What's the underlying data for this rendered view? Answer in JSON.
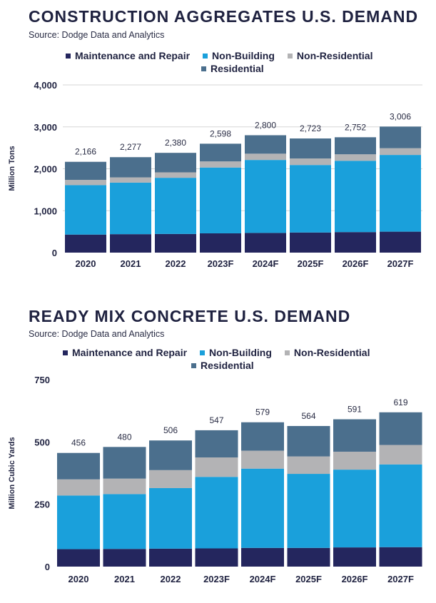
{
  "colors": {
    "maintenance": "#24265e",
    "nonbuilding": "#1aa0db",
    "nonresidential": "#b3b3b5",
    "residential": "#4b6f8d"
  },
  "chart_data": [
    {
      "type": "bar",
      "stacked": true,
      "title": "CONSTRUCTION AGGREGATES U.S. DEMAND",
      "source": "Source: Dodge Data and Analytics",
      "ylabel": "Million Tons",
      "xlabel": "",
      "ylim": [
        0,
        4000
      ],
      "yticks": [
        "0",
        "1,000",
        "2,000",
        "3,000",
        "4,000"
      ],
      "ytick_values": [
        0,
        1000,
        2000,
        3000,
        4000
      ],
      "grid": true,
      "legend_position": "top",
      "categories": [
        "2020",
        "2021",
        "2022",
        "2023F",
        "2024F",
        "2025F",
        "2026F",
        "2027F"
      ],
      "series": [
        {
          "name": "Maintenance and Repair",
          "color_key": "maintenance",
          "values": [
            430,
            440,
            445,
            460,
            470,
            480,
            490,
            500
          ]
        },
        {
          "name": "Non-Building",
          "color_key": "nonbuilding",
          "values": [
            1180,
            1230,
            1340,
            1570,
            1740,
            1610,
            1700,
            1830
          ]
        },
        {
          "name": "Non-Residential",
          "color_key": "nonresidential",
          "values": [
            125,
            125,
            130,
            145,
            150,
            155,
            155,
            160
          ]
        },
        {
          "name": "Residential",
          "color_key": "residential",
          "values": [
            431,
            482,
            465,
            423,
            440,
            478,
            407,
            516
          ]
        }
      ],
      "totals": [
        "2,166",
        "2,277",
        "2,380",
        "2,598",
        "2,800",
        "2,723",
        "2,752",
        "3,006"
      ],
      "total_values": [
        2166,
        2277,
        2380,
        2598,
        2800,
        2723,
        2752,
        3006
      ],
      "legend": [
        "Maintenance and Repair",
        "Non-Building",
        "Non-Residential",
        "Residential"
      ]
    },
    {
      "type": "bar",
      "stacked": true,
      "title": "READY MIX CONCRETE U.S. DEMAND",
      "source": "Source: Dodge Data and Analytics",
      "ylabel": "Million Cubic Yards",
      "xlabel": "",
      "ylim": [
        0,
        750
      ],
      "yticks": [
        "0",
        "250",
        "500",
        "750"
      ],
      "ytick_values": [
        0,
        250,
        500,
        750
      ],
      "grid": false,
      "legend_position": "top",
      "categories": [
        "2020",
        "2021",
        "2022",
        "2023F",
        "2024F",
        "2025F",
        "2026F",
        "2027F"
      ],
      "series": [
        {
          "name": "Maintenance and Repair",
          "color_key": "maintenance",
          "values": [
            70,
            71,
            72,
            73,
            75,
            75,
            77,
            78
          ]
        },
        {
          "name": "Non-Building",
          "color_key": "nonbuilding",
          "values": [
            215,
            220,
            243,
            287,
            318,
            297,
            312,
            332
          ]
        },
        {
          "name": "Non-Residential",
          "color_key": "nonresidential",
          "values": [
            65,
            62,
            72,
            78,
            72,
            70,
            72,
            78
          ]
        },
        {
          "name": "Residential",
          "color_key": "residential",
          "values": [
            106,
            127,
            119,
            109,
            114,
            122,
            130,
            131
          ]
        }
      ],
      "totals": [
        "456",
        "480",
        "506",
        "547",
        "579",
        "564",
        "591",
        "619"
      ],
      "total_values": [
        456,
        480,
        506,
        547,
        579,
        564,
        591,
        619
      ],
      "legend": [
        "Maintenance and Repair",
        "Non-Building",
        "Non-Residential",
        "Residential"
      ]
    }
  ]
}
